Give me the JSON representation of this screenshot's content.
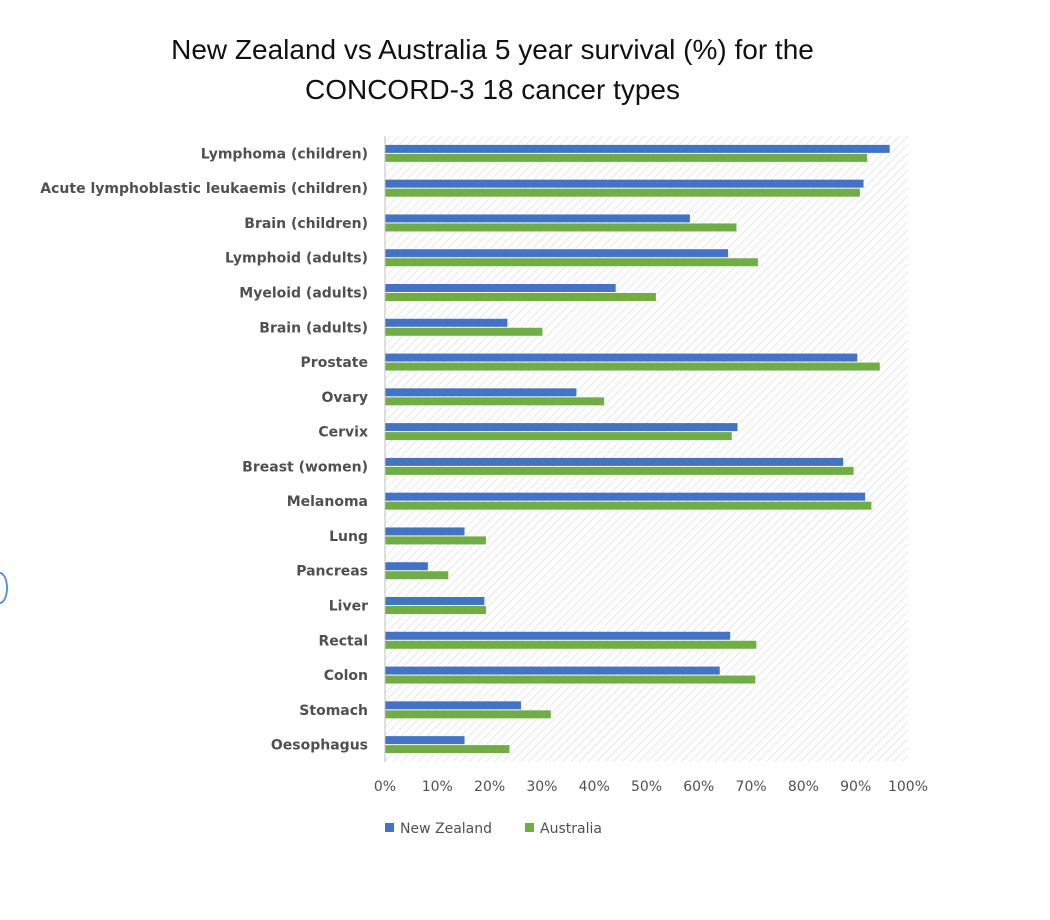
{
  "chart_data": {
    "type": "bar",
    "orientation": "horizontal",
    "title_lines": [
      "New Zealand vs Australia 5 year survival (%) for the",
      "CONCORD-3 18 cancer types"
    ],
    "categories": [
      "Lymphoma (children)",
      "Acute lymphoblastic leukaemis (children)",
      "Brain (children)",
      "Lymphoid (adults)",
      "Myeloid (adults)",
      "Brain (adults)",
      "Prostate",
      "Ovary",
      "Cervix",
      "Breast (women)",
      "Melanoma",
      "Lung",
      "Pancreas",
      "Liver",
      "Rectal",
      "Colon",
      "Stomach",
      "Oesophagus"
    ],
    "series": [
      {
        "name": "New Zealand",
        "color": "#4472c4",
        "values": [
          96.5,
          91.5,
          58.3,
          65.6,
          44.1,
          23.4,
          90.3,
          36.6,
          67.4,
          87.6,
          91.8,
          15.2,
          8.2,
          19.0,
          66.0,
          64.0,
          26.0,
          15.2
        ]
      },
      {
        "name": "Australia",
        "color": "#70ad47",
        "values": [
          92.2,
          90.8,
          67.2,
          71.3,
          51.8,
          30.1,
          94.6,
          41.9,
          66.3,
          89.6,
          93.0,
          19.3,
          12.1,
          19.3,
          71.0,
          70.8,
          31.7,
          23.8
        ]
      }
    ],
    "xlim": [
      0,
      100
    ],
    "x_ticks": [
      "0%",
      "10%",
      "20%",
      "30%",
      "40%",
      "50%",
      "60%",
      "70%",
      "80%",
      "90%",
      "100%"
    ],
    "grid": false,
    "plot_background": "diagonal hatch",
    "legend_position": "bottom"
  }
}
